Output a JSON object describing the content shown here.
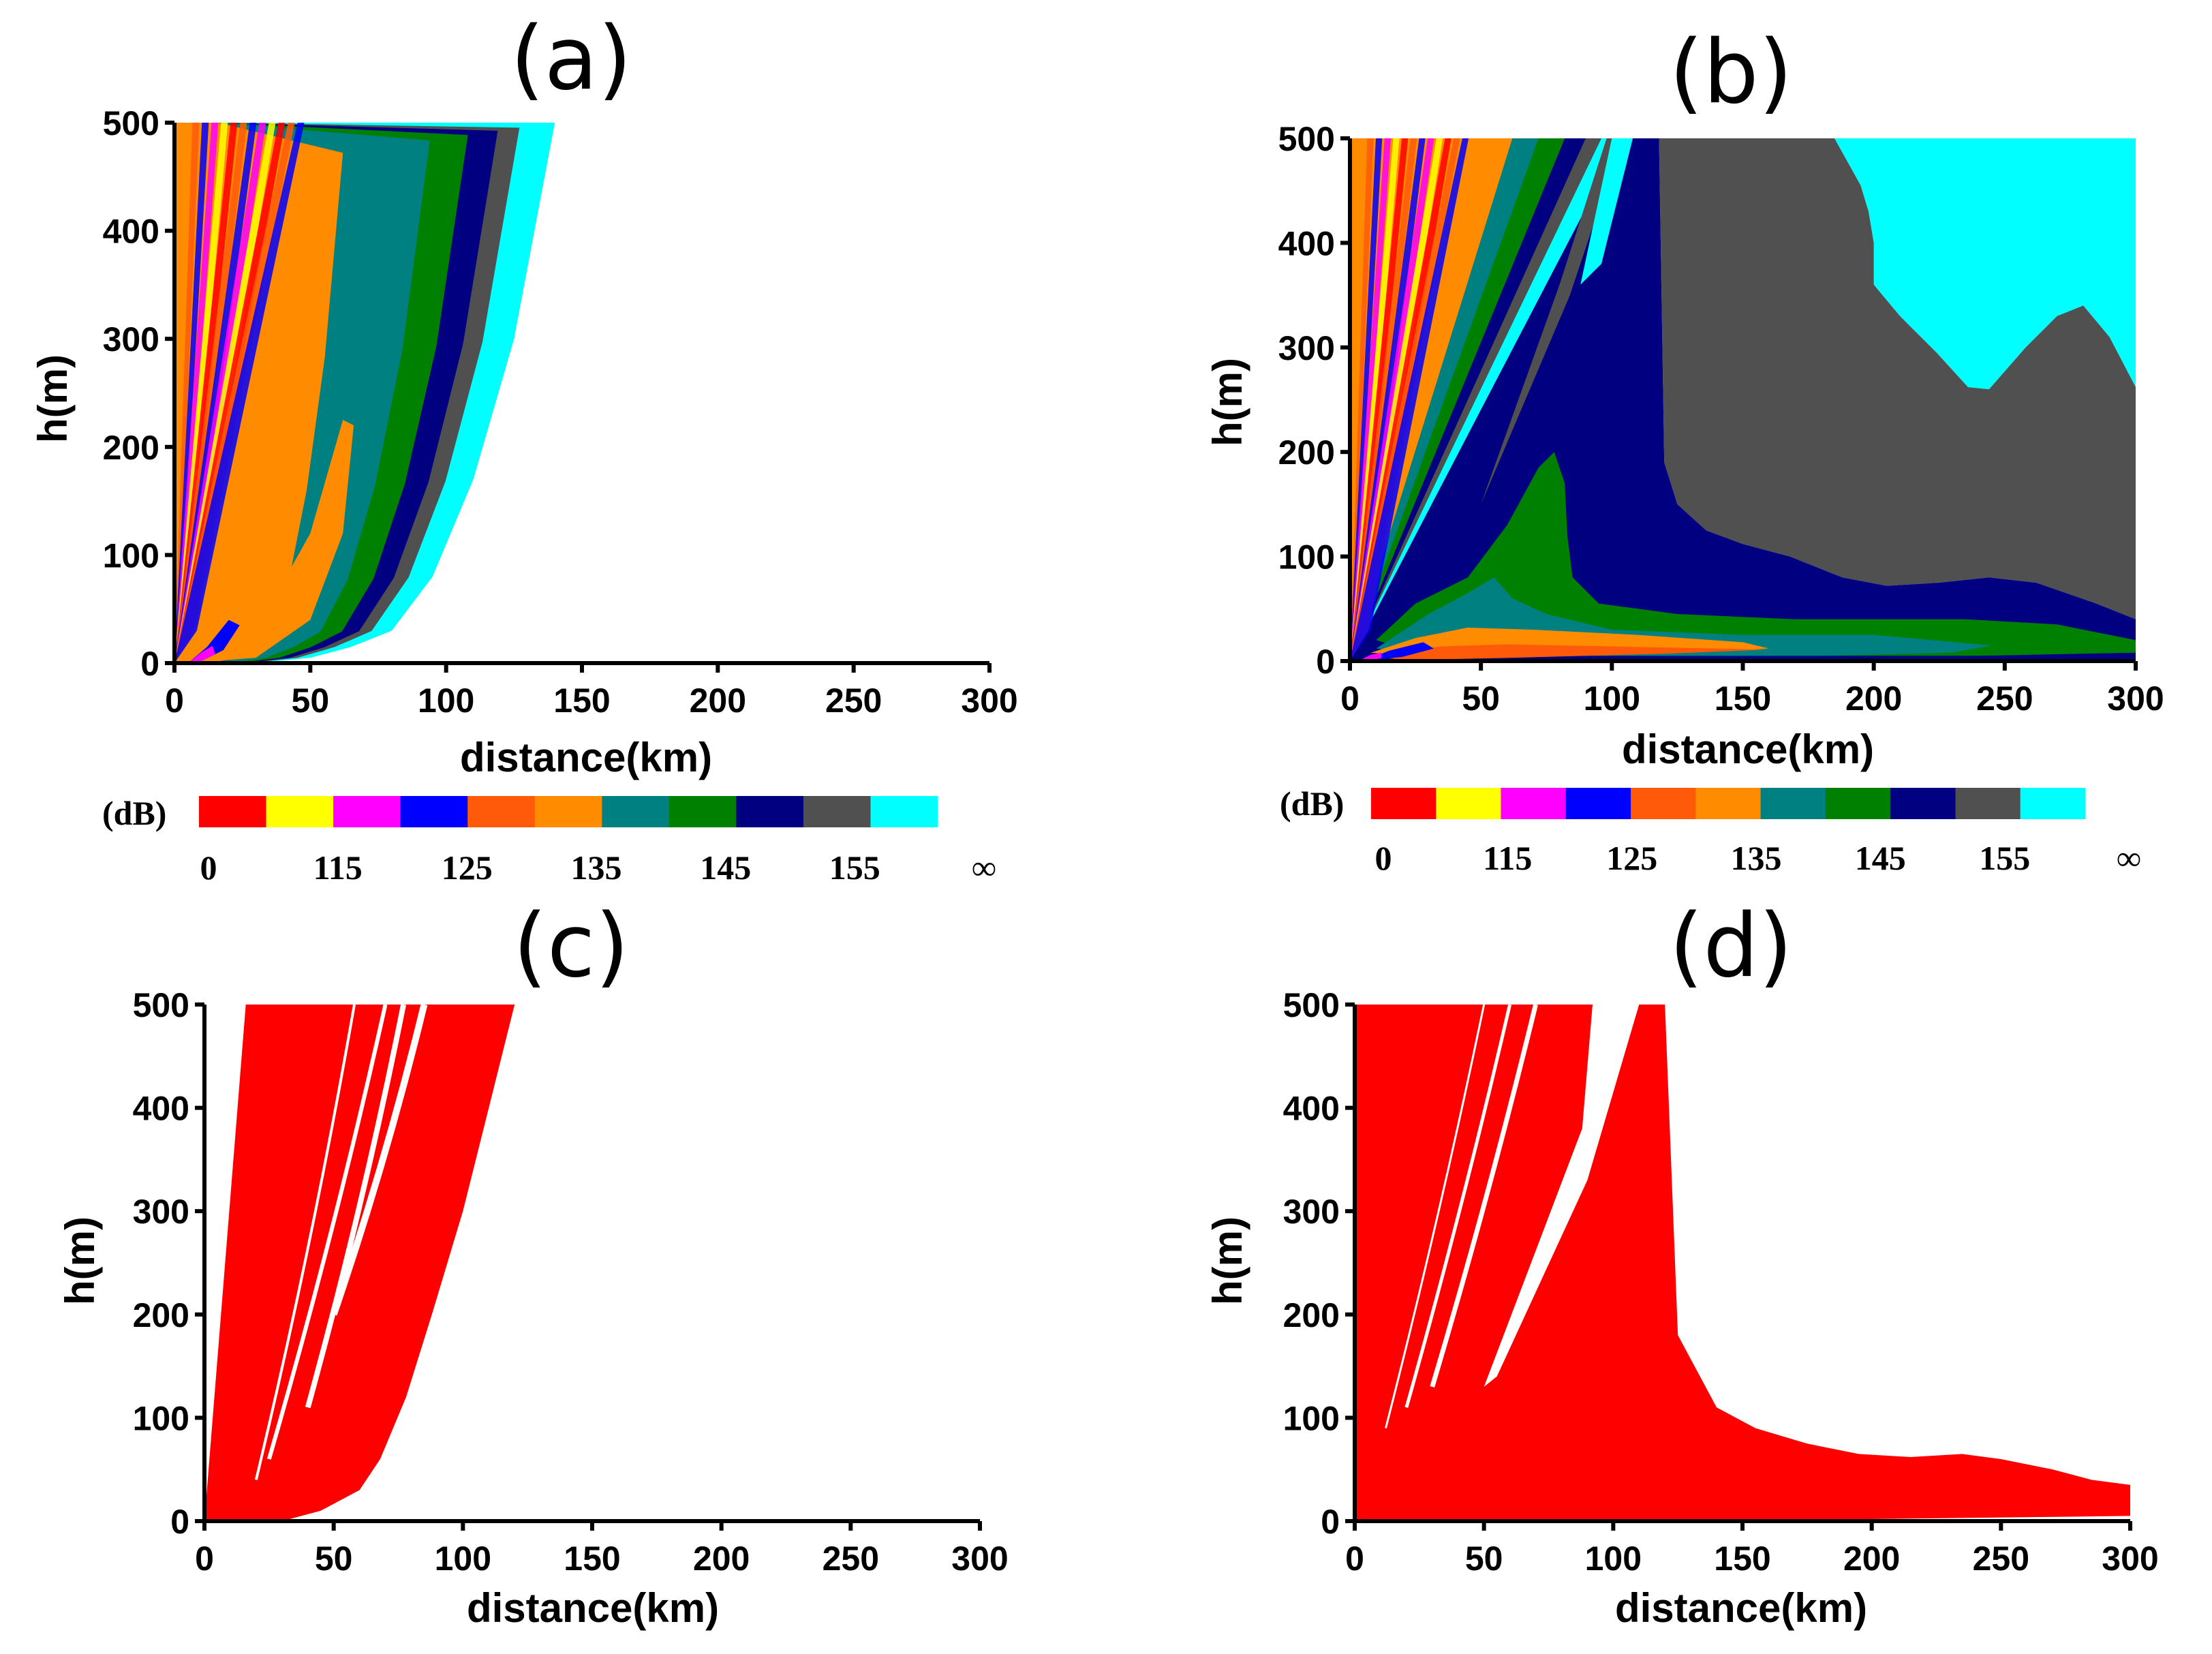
{
  "figure": {
    "background": "#ffffff"
  },
  "colorbar": {
    "unit": "(dB)",
    "tick_labels": [
      "0",
      "115",
      "125",
      "135",
      "145",
      "155",
      "∞"
    ],
    "colors": [
      "#ff0000",
      "#ffff00",
      "#ff00ff",
      "#0000ff",
      "#ff5a0a",
      "#ff8c00",
      "#008080",
      "#008000",
      "#000080",
      "#505050",
      "#00ffff"
    ]
  },
  "chart_data": [
    {
      "panel": "(a)",
      "type": "heatmap",
      "xlabel": "distance(km)",
      "ylabel": "h(m)",
      "xlim": [
        0,
        300
      ],
      "ylim": [
        0,
        500
      ],
      "xticks": [
        "0",
        "50",
        "100",
        "150",
        "200",
        "250",
        "300"
      ],
      "yticks": [
        "0",
        "100",
        "200",
        "300",
        "400",
        "500"
      ],
      "field_edge": {
        "x": [
          0,
          30,
          50,
          65,
          80,
          95,
          110,
          125,
          140
        ],
        "y": [
          0,
          0,
          5,
          15,
          30,
          80,
          170,
          300,
          500
        ]
      },
      "bands_at_top_km": [
        {
          "color": "#ff8c00",
          "x0": 53,
          "x1": 62
        },
        {
          "color": "#008080",
          "x0": 62,
          "x1": 94
        },
        {
          "color": "#008000",
          "x0": 94,
          "x1": 108
        },
        {
          "color": "#000080",
          "x0": 108,
          "x1": 119
        },
        {
          "color": "#505050",
          "x0": 119,
          "x1": 127
        },
        {
          "color": "#00ffff",
          "x0": 127,
          "x1": 140
        }
      ]
    },
    {
      "panel": "(b)",
      "type": "heatmap",
      "xlabel": "distance(km)",
      "ylabel": "h(m)",
      "xlim": [
        0,
        300
      ],
      "ylim": [
        0,
        500
      ],
      "xticks": [
        "0",
        "50",
        "100",
        "150",
        "200",
        "250",
        "300"
      ],
      "yticks": [
        "0",
        "100",
        "200",
        "300",
        "400",
        "500"
      ],
      "regions": [
        {
          "name": "cyan",
          "color": "#00ffff",
          "poly": [
            [
              185,
              500
            ],
            [
              300,
              500
            ],
            [
              300,
              262
            ],
            [
              290,
              310
            ],
            [
              280,
              340
            ],
            [
              270,
              330
            ],
            [
              258,
              300
            ],
            [
              244,
              260
            ],
            [
              236,
              262
            ],
            [
              224,
              295
            ],
            [
              210,
              330
            ],
            [
              200,
              360
            ],
            [
              200,
              400
            ],
            [
              198,
              430
            ],
            [
              195,
              455
            ],
            [
              185,
              500
            ]
          ]
        },
        {
          "name": "gray",
          "color": "#505050",
          "poly": [
            [
              128,
              500
            ],
            [
              185,
              500
            ],
            [
              195,
              455
            ],
            [
              198,
              430
            ],
            [
              200,
              400
            ],
            [
              200,
              360
            ],
            [
              210,
              330
            ],
            [
              224,
              295
            ],
            [
              236,
              262
            ],
            [
              244,
              260
            ],
            [
              258,
              300
            ],
            [
              270,
              330
            ],
            [
              280,
              340
            ],
            [
              290,
              310
            ],
            [
              300,
              262
            ],
            [
              300,
              40
            ],
            [
              285,
              55
            ],
            [
              262,
              75
            ],
            [
              244,
              80
            ],
            [
              225,
              75
            ],
            [
              205,
              72
            ],
            [
              188,
              80
            ],
            [
              168,
              100
            ],
            [
              150,
              112
            ],
            [
              136,
              125
            ],
            [
              125,
              150
            ],
            [
              120,
              190
            ],
            [
              118,
              500
            ]
          ]
        },
        {
          "name": "navy",
          "color": "#000080",
          "poly": [
            [
              82,
              500
            ],
            [
              128,
              500
            ],
            [
              118,
              500
            ],
            [
              120,
              190
            ],
            [
              125,
              150
            ],
            [
              136,
              125
            ],
            [
              150,
              112
            ],
            [
              168,
              100
            ],
            [
              188,
              80
            ],
            [
              205,
              72
            ],
            [
              225,
              75
            ],
            [
              244,
              80
            ],
            [
              262,
              75
            ],
            [
              285,
              55
            ],
            [
              300,
              40
            ],
            [
              300,
              0
            ],
            [
              0,
              0
            ]
          ]
        },
        {
          "name": "green",
          "color": "#008000",
          "poly": [
            [
              10,
              20
            ],
            [
              25,
              55
            ],
            [
              45,
              80
            ],
            [
              60,
              130
            ],
            [
              72,
              185
            ],
            [
              78,
              200
            ],
            [
              82,
              170
            ],
            [
              83,
              120
            ],
            [
              85,
              80
            ],
            [
              95,
              55
            ],
            [
              125,
              45
            ],
            [
              170,
              40
            ],
            [
              235,
              40
            ],
            [
              270,
              35
            ],
            [
              300,
              20
            ],
            [
              300,
              8
            ],
            [
              240,
              5
            ],
            [
              120,
              5
            ],
            [
              30,
              5
            ]
          ]
        },
        {
          "name": "teal",
          "color": "#008080",
          "poly": [
            [
              10,
              12
            ],
            [
              30,
              45
            ],
            [
              45,
              65
            ],
            [
              55,
              80
            ],
            [
              62,
              60
            ],
            [
              75,
              45
            ],
            [
              100,
              30
            ],
            [
              150,
              25
            ],
            [
              200,
              25
            ],
            [
              245,
              15
            ],
            [
              230,
              8
            ],
            [
              180,
              5
            ],
            [
              100,
              5
            ],
            [
              40,
              5
            ]
          ]
        },
        {
          "name": "orange",
          "color": "#ff8c00",
          "poly": [
            [
              8,
              8
            ],
            [
              25,
              22
            ],
            [
              45,
              32
            ],
            [
              70,
              30
            ],
            [
              110,
              25
            ],
            [
              150,
              18
            ],
            [
              160,
              12
            ],
            [
              130,
              8
            ],
            [
              80,
              5
            ],
            [
              30,
              3
            ]
          ]
        },
        {
          "name": "darkorange",
          "color": "#ff5a0a",
          "poly": [
            [
              8,
              5
            ],
            [
              20,
              10
            ],
            [
              35,
              14
            ],
            [
              60,
              16
            ],
            [
              100,
              14
            ],
            [
              160,
              11
            ],
            [
              120,
              7
            ],
            [
              60,
              3
            ],
            [
              20,
              1
            ]
          ]
        }
      ],
      "upper_bands_at_top_km": [
        {
          "color": "#ff8c00",
          "x0": 52,
          "x1": 62
        },
        {
          "color": "#008080",
          "x0": 62,
          "x1": 72
        },
        {
          "color": "#008000",
          "x0": 72,
          "x1": 82
        },
        {
          "color": "#000080",
          "x0": 82,
          "x1": 90
        },
        {
          "color": "#505050",
          "x0": 90,
          "x1": 96
        },
        {
          "color": "#00ffff",
          "x0": 96,
          "x1": 104
        }
      ]
    },
    {
      "panel": "(c)",
      "type": "area",
      "xlabel": "distance(km)",
      "ylabel": "h(m)",
      "xlim": [
        0,
        300
      ],
      "ylim": [
        0,
        500
      ],
      "xticks": [
        "0",
        "50",
        "100",
        "150",
        "200",
        "250",
        "300"
      ],
      "yticks": [
        "0",
        "100",
        "200",
        "300",
        "400",
        "500"
      ],
      "series": [
        {
          "name": "coverage",
          "color": "#ff0000",
          "x": [
            0,
            16,
            30,
            60,
            70,
            80,
            90,
            100,
            110,
            120
          ],
          "y": [
            0,
            500,
            500,
            500,
            500,
            500,
            500,
            500,
            500,
            500
          ],
          "lower_edge": {
            "x": [
              0,
              30,
              45,
              60,
              68,
              78,
              88,
              100,
              110,
              120
            ],
            "y": [
              0,
              0,
              10,
              30,
              60,
              120,
              200,
              300,
              400,
              500
            ]
          }
        }
      ]
    },
    {
      "panel": "(d)",
      "type": "area",
      "xlabel": "distance(km)",
      "ylabel": "h(m)",
      "xlim": [
        0,
        300
      ],
      "ylim": [
        0,
        500
      ],
      "xticks": [
        "0",
        "50",
        "100",
        "150",
        "200",
        "250",
        "300"
      ],
      "yticks": [
        "0",
        "100",
        "200",
        "300",
        "400",
        "500"
      ],
      "series": [
        {
          "name": "coverage",
          "color": "#ff0000",
          "x": [
            0,
            17,
            112,
            120,
            125,
            140,
            155,
            175,
            195,
            215,
            235,
            250,
            270,
            285,
            300
          ],
          "y": [
            500,
            500,
            500,
            500,
            180,
            110,
            90,
            75,
            65,
            62,
            65,
            60,
            50,
            40,
            35
          ]
        }
      ]
    }
  ]
}
